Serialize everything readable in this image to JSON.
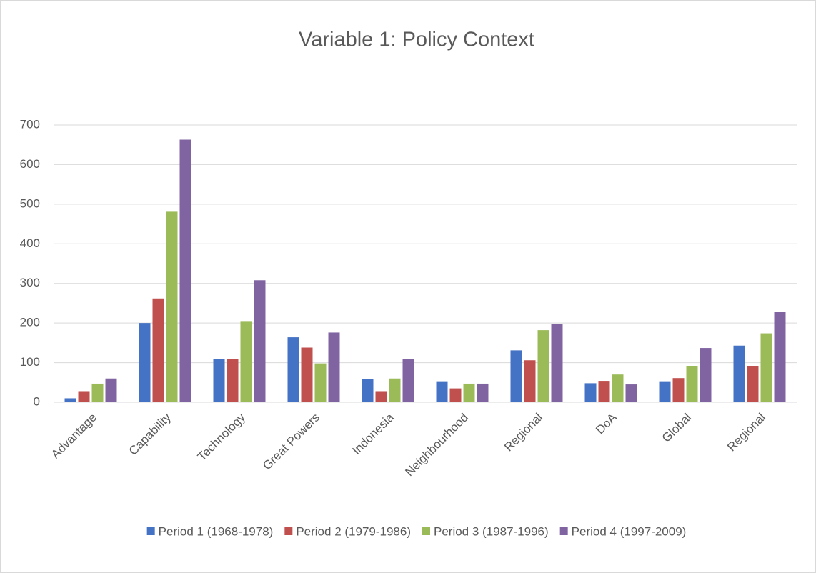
{
  "chart_data": {
    "type": "bar",
    "title": "Variable 1: Policy Context",
    "categories": [
      "Advantage",
      "Capability",
      "Technology",
      "Great Powers",
      "Indonesia",
      "Neighbourhood",
      "Regional",
      "DoA",
      "Global",
      "Regional"
    ],
    "series": [
      {
        "name": "Period 1 (1968-1978)",
        "color": "#4472c4",
        "values": [
          10,
          200,
          109,
          164,
          58,
          53,
          131,
          48,
          53,
          143
        ]
      },
      {
        "name": "Period 2 (1979-1986)",
        "color": "#c0504d",
        "values": [
          28,
          262,
          110,
          138,
          28,
          35,
          106,
          54,
          61,
          92
        ]
      },
      {
        "name": "Period 3 (1987-1996)",
        "color": "#9bbb59",
        "values": [
          47,
          481,
          205,
          98,
          60,
          47,
          182,
          70,
          92,
          174
        ]
      },
      {
        "name": "Period 4 (1997-2009)",
        "color": "#8064a2",
        "values": [
          60,
          663,
          308,
          176,
          110,
          47,
          198,
          45,
          137,
          228
        ]
      }
    ],
    "ylim": [
      0,
      700
    ],
    "yticks": [
      0,
      100,
      200,
      300,
      400,
      500,
      600,
      700
    ],
    "grid": true,
    "legend": "bottom"
  }
}
